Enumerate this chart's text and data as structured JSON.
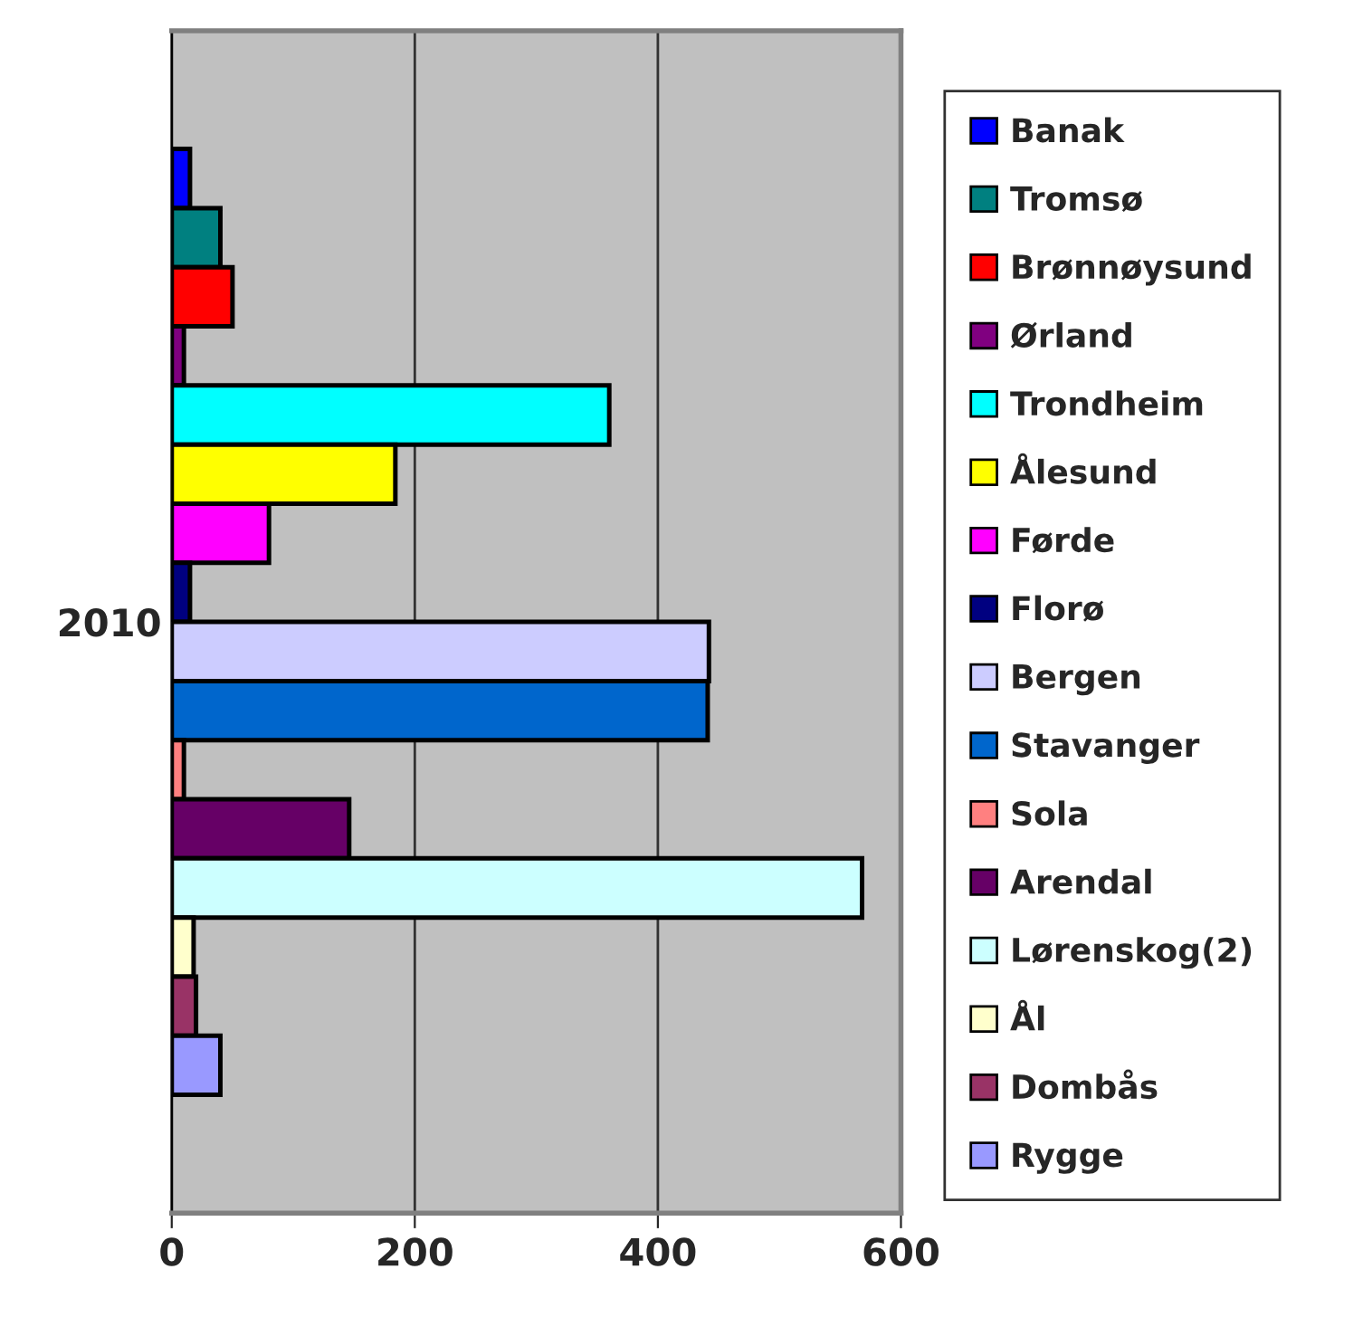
{
  "chart_data": {
    "type": "bar",
    "orientation": "horizontal",
    "categories": [
      "2010"
    ],
    "series": [
      {
        "name": "Banak",
        "color": "#0000ff",
        "values": [
          15
        ]
      },
      {
        "name": "Tromsø",
        "color": "#008080",
        "values": [
          40
        ]
      },
      {
        "name": "Brønnøysund",
        "color": "#ff0000",
        "values": [
          50
        ]
      },
      {
        "name": "Ørland",
        "color": "#800080",
        "values": [
          10
        ]
      },
      {
        "name": "Trondheim",
        "color": "#00ffff",
        "values": [
          360
        ]
      },
      {
        "name": "Ålesund",
        "color": "#ffff00",
        "values": [
          184
        ]
      },
      {
        "name": "Førde",
        "color": "#ff00ff",
        "values": [
          80
        ]
      },
      {
        "name": "Florø",
        "color": "#000080",
        "values": [
          15
        ]
      },
      {
        "name": "Bergen",
        "color": "#ccccff",
        "values": [
          442
        ]
      },
      {
        "name": "Stavanger",
        "color": "#0066cc",
        "values": [
          441
        ]
      },
      {
        "name": "Sola",
        "color": "#ff8080",
        "values": [
          10
        ]
      },
      {
        "name": "Arendal",
        "color": "#660066",
        "values": [
          146
        ]
      },
      {
        "name": "Lørenskog(2)",
        "color": "#ccffff",
        "values": [
          568
        ]
      },
      {
        "name": "Ål",
        "color": "#ffffcc",
        "values": [
          18
        ]
      },
      {
        "name": "Dombås",
        "color": "#993366",
        "values": [
          20
        ]
      },
      {
        "name": "Rygge",
        "color": "#9999ff",
        "values": [
          40
        ]
      }
    ],
    "xlim": [
      0,
      600
    ],
    "xticks": [
      0,
      200,
      400,
      600
    ],
    "grid": "x",
    "legend": "right"
  }
}
